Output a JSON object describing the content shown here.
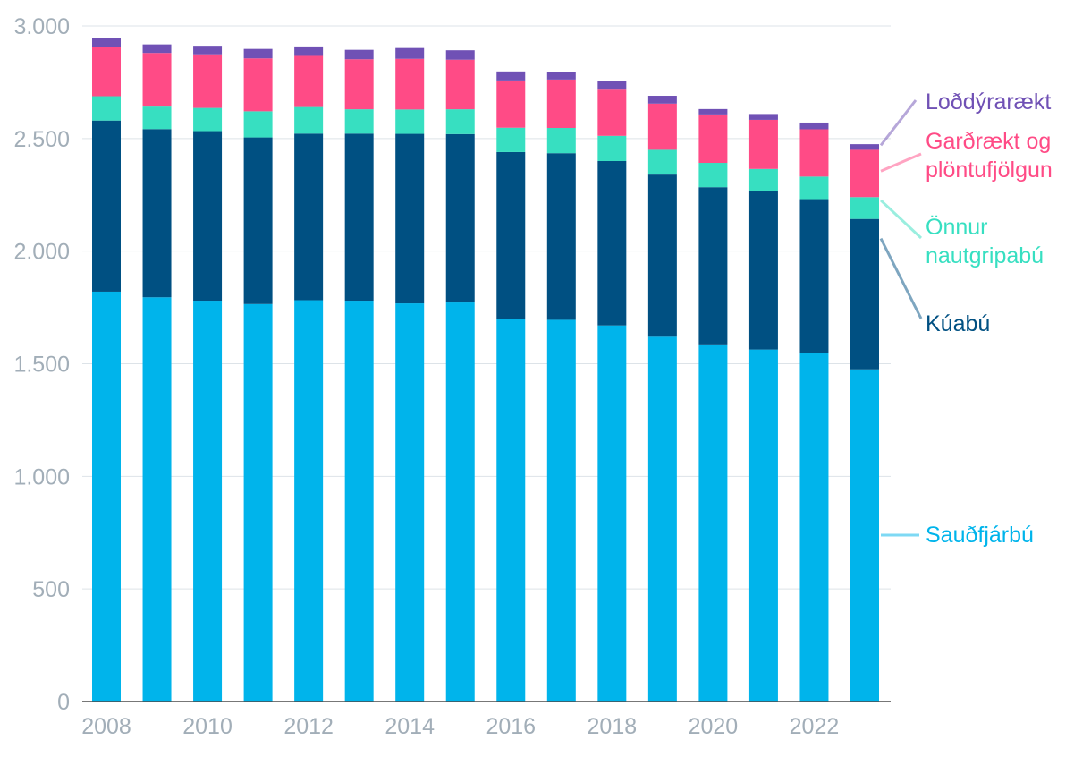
{
  "chart_data": {
    "type": "bar",
    "stacked": true,
    "title": "",
    "xlabel": "",
    "ylabel": "",
    "ylim": [
      0,
      3000
    ],
    "yticks": [
      0,
      500,
      1000,
      1500,
      2000,
      2500,
      3000
    ],
    "ytick_labels": [
      "0",
      "500",
      "1.000",
      "1.500",
      "2.000",
      "2.500",
      "3.000"
    ],
    "xtick_labels": [
      "2008",
      "2010",
      "2012",
      "2014",
      "2016",
      "2018",
      "2020",
      "2022"
    ],
    "grid": true,
    "legend_position": "right",
    "categories": [
      "2008",
      "2009",
      "2010",
      "2011",
      "2012",
      "2013",
      "2014",
      "2015",
      "2016",
      "2017",
      "2018",
      "2019",
      "2020",
      "2021",
      "2022",
      "2023"
    ],
    "series": [
      {
        "name": "Sauðfjárbú",
        "legend_lines": [
          "Sauðfjárbú"
        ],
        "color": "#00b4eb",
        "values": [
          1820,
          1795,
          1780,
          1765,
          1782,
          1780,
          1768,
          1772,
          1697,
          1695,
          1670,
          1620,
          1582,
          1563,
          1548,
          1475
        ]
      },
      {
        "name": "Kúabú",
        "legend_lines": [
          "Kúabú"
        ],
        "color": "#005082",
        "values": [
          760,
          747,
          753,
          740,
          740,
          742,
          753,
          748,
          743,
          740,
          730,
          720,
          702,
          702,
          683,
          668
        ]
      },
      {
        "name": "Önnur nautgripabú",
        "legend_lines": [
          "Önnur",
          "nautgripabú"
        ],
        "color": "#37dfc1",
        "values": [
          108,
          100,
          103,
          116,
          118,
          108,
          108,
          110,
          108,
          112,
          112,
          110,
          108,
          100,
          100,
          97
        ]
      },
      {
        "name": "Garðrækt og plöntufjölgun",
        "legend_lines": [
          "Garðrækt og",
          "plöntufjölgun"
        ],
        "color": "#ff4b86",
        "values": [
          220,
          238,
          238,
          235,
          227,
          222,
          225,
          220,
          210,
          215,
          205,
          205,
          215,
          218,
          210,
          210
        ]
      },
      {
        "name": "Loðdýrarækt",
        "legend_lines": [
          "Loðdýrarækt"
        ],
        "color": "#7051b5",
        "values": [
          38,
          38,
          38,
          42,
          42,
          42,
          48,
          42,
          40,
          34,
          38,
          35,
          24,
          26,
          30,
          25
        ]
      }
    ]
  }
}
